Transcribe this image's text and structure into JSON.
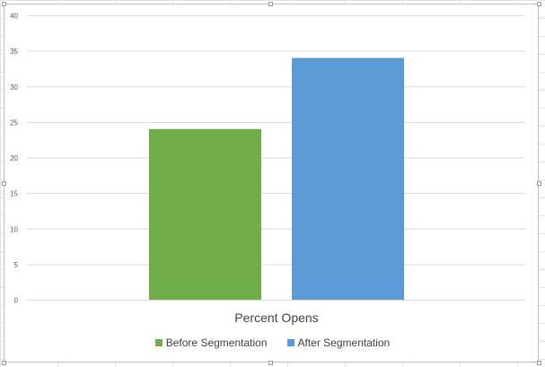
{
  "chart_data": {
    "type": "bar",
    "categories": [
      "Percent Opens"
    ],
    "series": [
      {
        "name": "Before Segmentation",
        "values": [
          24
        ],
        "color": "#70ad47"
      },
      {
        "name": "After Segmentation",
        "values": [
          34
        ],
        "color": "#5b9bd5"
      }
    ],
    "ylim": [
      0,
      40
    ],
    "yticks": [
      "0",
      "5",
      "10",
      "15",
      "20",
      "25",
      "30",
      "35",
      "40"
    ],
    "grid": true,
    "legend": "bottom"
  }
}
